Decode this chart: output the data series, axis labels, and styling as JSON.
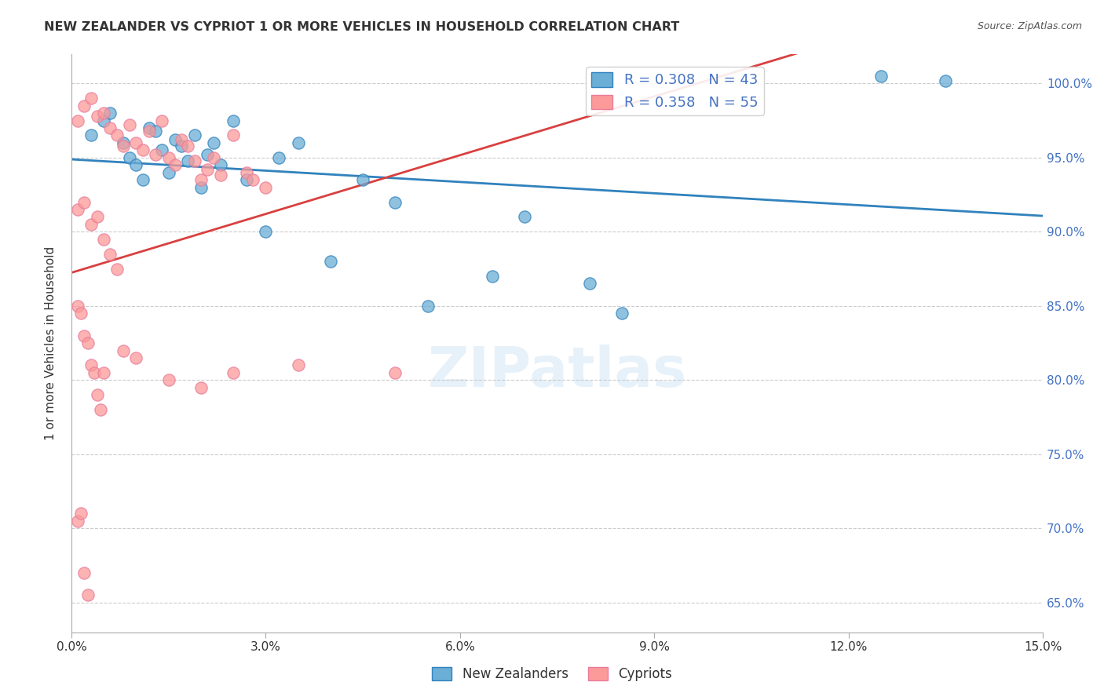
{
  "title": "NEW ZEALANDER VS CYPRIOT 1 OR MORE VEHICLES IN HOUSEHOLD CORRELATION CHART",
  "source": "Source: ZipAtlas.com",
  "xlabel_ticks": [
    "0.0%",
    "3.0%",
    "6.0%",
    "9.0%",
    "12.0%",
    "15.0%"
  ],
  "xlabel_values": [
    0.0,
    3.0,
    6.0,
    9.0,
    12.0,
    15.0
  ],
  "ylabel_ticks": [
    "65.0%",
    "70.0%",
    "75.0%",
    "80.0%",
    "85.0%",
    "90.0%",
    "95.0%",
    "100.0%"
  ],
  "ylabel_values": [
    65.0,
    70.0,
    75.0,
    80.0,
    85.0,
    90.0,
    95.0,
    100.0
  ],
  "xmin": 0.0,
  "xmax": 15.0,
  "ymin": 63.0,
  "ymax": 102.0,
  "watermark": "ZIPatlas",
  "legend_label1": "New Zealanders",
  "legend_label2": "Cypriots",
  "R1": 0.308,
  "N1": 43,
  "R2": 0.358,
  "N2": 55,
  "color_nz": "#6baed6",
  "color_cy": "#fb9a99",
  "color_nz_line": "#3182bd",
  "color_cy_line": "#e31a1c",
  "title_color": "#333333",
  "axis_label_color": "#333333",
  "right_tick_color": "#4472c4",
  "nz_points_x": [
    0.3,
    0.5,
    0.6,
    0.8,
    0.9,
    1.0,
    1.1,
    1.2,
    1.3,
    1.4,
    1.5,
    1.6,
    1.7,
    1.8,
    1.9,
    2.0,
    2.1,
    2.2,
    2.3,
    2.5,
    2.7,
    3.0,
    3.2,
    3.5,
    4.0,
    4.5,
    5.0,
    5.5,
    6.5,
    7.0,
    8.0,
    8.5,
    12.5,
    13.5
  ],
  "nz_points_y": [
    96.5,
    97.5,
    98.0,
    96.0,
    95.0,
    94.5,
    93.5,
    97.0,
    96.8,
    95.5,
    94.0,
    96.2,
    95.8,
    94.8,
    96.5,
    93.0,
    95.2,
    96.0,
    94.5,
    97.5,
    93.5,
    90.0,
    95.0,
    96.0,
    88.0,
    93.5,
    92.0,
    85.0,
    87.0,
    91.0,
    86.5,
    84.5,
    100.5,
    100.2
  ],
  "cy_points_x": [
    0.1,
    0.2,
    0.3,
    0.4,
    0.5,
    0.6,
    0.7,
    0.8,
    0.9,
    1.0,
    1.1,
    1.2,
    1.3,
    1.4,
    1.5,
    1.6,
    1.7,
    1.8,
    1.9,
    2.0,
    2.1,
    2.2,
    2.3,
    2.5,
    2.7,
    2.8,
    3.0,
    0.1,
    0.2,
    0.3,
    0.4,
    0.5,
    0.6,
    0.7,
    0.1,
    0.15,
    0.2,
    0.25,
    0.3,
    0.35,
    0.4,
    0.45,
    0.5,
    0.8,
    1.0,
    1.5,
    2.0,
    2.5,
    3.5,
    5.0,
    0.1,
    0.15,
    0.2,
    0.25
  ],
  "cy_points_y": [
    97.5,
    98.5,
    99.0,
    97.8,
    98.0,
    97.0,
    96.5,
    95.8,
    97.2,
    96.0,
    95.5,
    96.8,
    95.2,
    97.5,
    95.0,
    94.5,
    96.2,
    95.8,
    94.8,
    93.5,
    94.2,
    95.0,
    93.8,
    96.5,
    94.0,
    93.5,
    93.0,
    91.5,
    92.0,
    90.5,
    91.0,
    89.5,
    88.5,
    87.5,
    85.0,
    84.5,
    83.0,
    82.5,
    81.0,
    80.5,
    79.0,
    78.0,
    80.5,
    82.0,
    81.5,
    80.0,
    79.5,
    80.5,
    81.0,
    80.5,
    70.5,
    71.0,
    67.0,
    65.5
  ]
}
